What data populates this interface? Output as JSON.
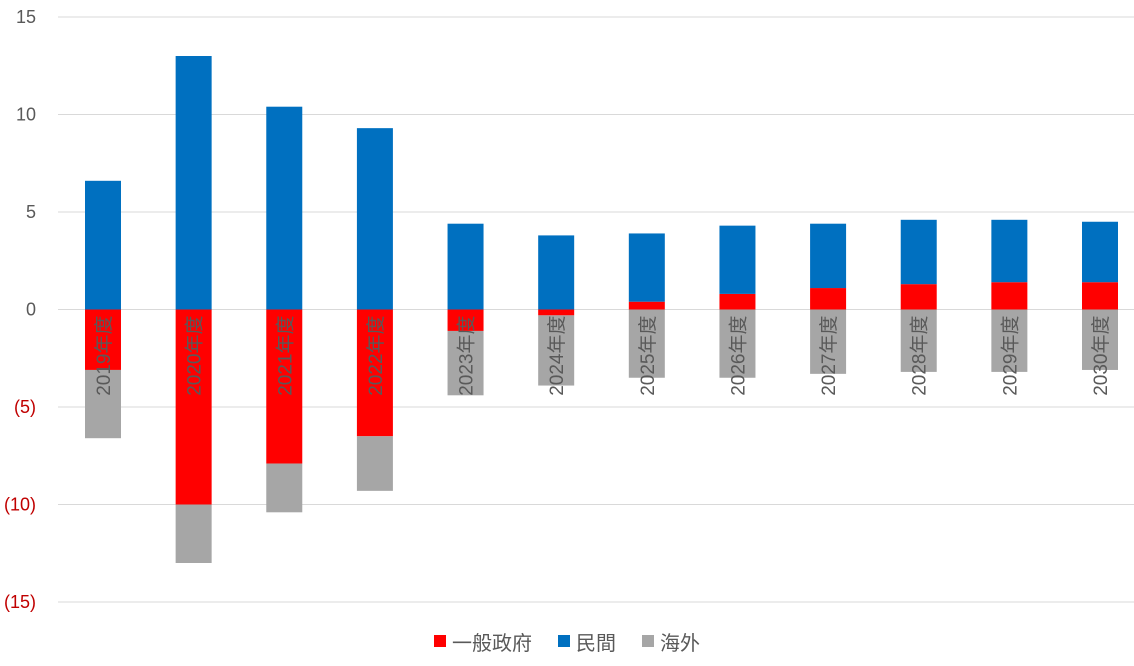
{
  "chart_data": {
    "type": "bar",
    "stacked": true,
    "categories": [
      "2019年度",
      "2020年度",
      "2021年度",
      "2022年度",
      "2023年度",
      "2024年度",
      "2025年度",
      "2026年度",
      "2027年度",
      "2028年度",
      "2029年度",
      "2030年度"
    ],
    "series": [
      {
        "name": "一般政府",
        "color": "#ff0000",
        "values": [
          -3.1,
          -10.0,
          -7.9,
          -6.5,
          -1.1,
          -0.3,
          0.4,
          0.8,
          1.1,
          1.3,
          1.4,
          1.4
        ]
      },
      {
        "name": "民間",
        "color": "#0070c0",
        "values": [
          6.6,
          13.0,
          10.4,
          9.3,
          4.4,
          3.8,
          3.5,
          3.5,
          3.3,
          3.3,
          3.2,
          3.1
        ]
      },
      {
        "name": "海外",
        "color": "#a6a6a6",
        "values": [
          -3.5,
          -3.0,
          -2.5,
          -2.8,
          -3.3,
          -3.6,
          -3.5,
          -3.5,
          -3.3,
          -3.2,
          -3.2,
          -3.1
        ]
      }
    ],
    "y_ticks": [
      {
        "value": 15,
        "label": "15",
        "color": "#595959"
      },
      {
        "value": 10,
        "label": "10",
        "color": "#595959"
      },
      {
        "value": 5,
        "label": "5",
        "color": "#595959"
      },
      {
        "value": 0,
        "label": "0",
        "color": "#595959"
      },
      {
        "value": -5,
        "label": "(5)",
        "color": "#c00000"
      },
      {
        "value": -10,
        "label": "(10)",
        "color": "#c00000"
      },
      {
        "value": -15,
        "label": "(15)",
        "color": "#c00000"
      }
    ],
    "ylim": [
      -15,
      15
    ],
    "grid": true,
    "category_label_orientation": "vertical",
    "category_label_position": "below-zero-line",
    "legend_position": "bottom"
  }
}
